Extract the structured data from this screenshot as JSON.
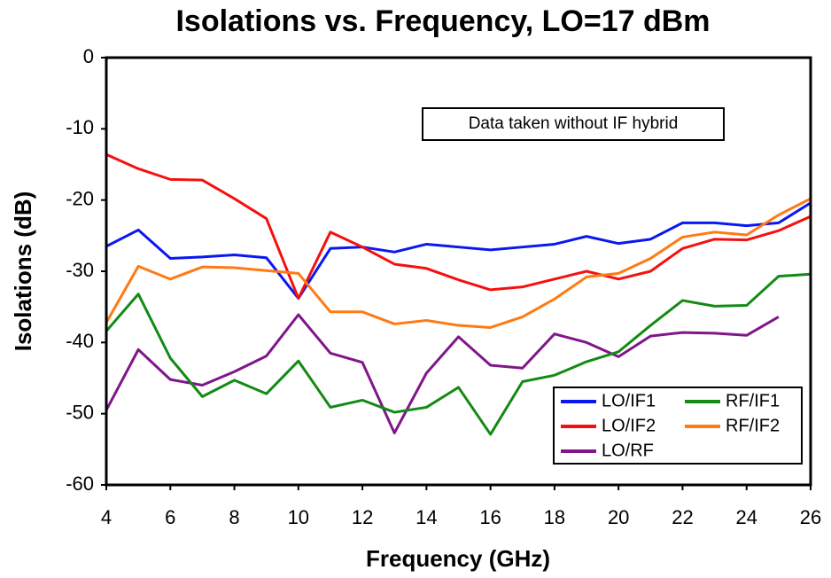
{
  "chart_data": {
    "type": "line",
    "title": "Isolations vs. Frequency, LO=17 dBm",
    "x_label": "Frequency (GHz)",
    "y_label": "Isolations (dB)",
    "annotation": "Data taken without IF hybrid",
    "x": [
      4,
      5,
      6,
      7,
      8,
      9,
      10,
      11,
      12,
      13,
      14,
      15,
      16,
      17,
      18,
      19,
      20,
      21,
      22,
      23,
      24,
      25,
      26
    ],
    "series": [
      {
        "name": "LO/IF1",
        "color": "#0a18f0",
        "values": [
          -26.5,
          -24.2,
          -28.2,
          -28,
          -27.7,
          -28.1,
          -33.8,
          -26.8,
          -26.6,
          -27.3,
          -26.2,
          -26.6,
          -27,
          -26.6,
          -26.2,
          -25.1,
          -26.1,
          -25.5,
          -23.2,
          -23.2,
          -23.6,
          -23.2,
          -20.4
        ]
      },
      {
        "name": "LO/IF2",
        "color": "#f51010",
        "values": [
          -13.6,
          -15.6,
          -17.1,
          -17.2,
          -19.8,
          -22.6,
          -33.8,
          -24.5,
          -26.6,
          -29,
          -29.6,
          -31.2,
          -32.6,
          -32.2,
          -31.1,
          -30,
          -31.1,
          -30,
          -26.8,
          -25.5,
          -25.6,
          -24.3,
          -22.3
        ]
      },
      {
        "name": "LO/RF",
        "color": "#80168a",
        "values": [
          -49.5,
          -41,
          -45.2,
          -46,
          -44.1,
          -41.9,
          -36.1,
          -41.5,
          -42.8,
          -52.7,
          -44.3,
          -39.2,
          -43.2,
          -43.6,
          -38.8,
          -40,
          -42,
          -39.1,
          -38.6,
          -38.7,
          -39,
          -36.4,
          null
        ]
      },
      {
        "name": "RF/IF1",
        "color": "#138a13",
        "values": [
          -38.4,
          -33.2,
          -42.2,
          -47.6,
          -45.3,
          -47.2,
          -42.6,
          -49.1,
          -48.1,
          -49.8,
          -49.1,
          -46.3,
          -52.9,
          -45.5,
          -44.6,
          -42.7,
          -41.3,
          -37.6,
          -34.1,
          -34.9,
          -34.8,
          -30.7,
          -30.4
        ]
      },
      {
        "name": "RF/IF2",
        "color": "#ff7a14",
        "values": [
          -37.2,
          -29.3,
          -31.1,
          -29.4,
          -29.5,
          -29.9,
          -30.3,
          -35.7,
          -35.7,
          -37.4,
          -36.9,
          -37.6,
          -37.9,
          -36.4,
          -33.9,
          -30.8,
          -30.3,
          -28.2,
          -25.2,
          -24.5,
          -24.9,
          -22.1,
          -19.8
        ]
      }
    ],
    "xlim": [
      4,
      26
    ],
    "ylim": [
      -60,
      0
    ],
    "xticks": [
      4,
      6,
      8,
      10,
      12,
      14,
      16,
      18,
      20,
      22,
      24,
      26
    ],
    "yticks": [
      0,
      -10,
      -20,
      -30,
      -40,
      -50,
      -60
    ],
    "grid": false,
    "legend": "lower-right"
  }
}
